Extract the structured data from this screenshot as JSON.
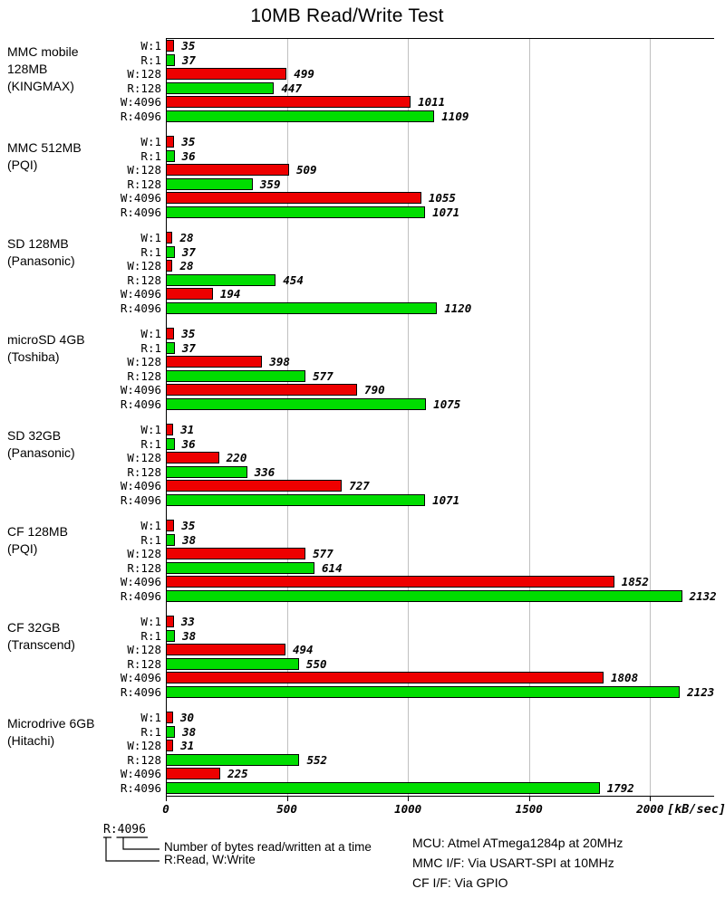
{
  "chart_data": {
    "type": "bar",
    "orientation": "horizontal",
    "title": "10MB Read/Write Test",
    "xlabel": "[kB/sec]",
    "x_ticks": [
      0,
      500,
      1000,
      1500,
      2000
    ],
    "xlim": [
      0,
      2260
    ],
    "grid": true,
    "legend_position": "none",
    "bar_labels": [
      "W:1",
      "R:1",
      "W:128",
      "R:128",
      "W:4096",
      "R:4096"
    ],
    "colors": {
      "write": "#ee0000",
      "read": "#00dd00",
      "grid": "#c0c0c0",
      "axis": "#000000"
    },
    "groups": [
      {
        "label_lines": [
          "MMC mobile",
          "128MB",
          "(KINGMAX)"
        ],
        "values": [
          35,
          37,
          499,
          447,
          1011,
          1109
        ]
      },
      {
        "label_lines": [
          "MMC 512MB",
          "(PQI)"
        ],
        "values": [
          35,
          36,
          509,
          359,
          1055,
          1071
        ]
      },
      {
        "label_lines": [
          "SD 128MB",
          "(Panasonic)"
        ],
        "values": [
          28,
          37,
          28,
          454,
          194,
          1120
        ]
      },
      {
        "label_lines": [
          "microSD 4GB",
          "(Toshiba)"
        ],
        "values": [
          35,
          37,
          398,
          577,
          790,
          1075
        ]
      },
      {
        "label_lines": [
          "SD 32GB",
          "(Panasonic)"
        ],
        "values": [
          31,
          36,
          220,
          336,
          727,
          1071
        ]
      },
      {
        "label_lines": [
          "CF 128MB",
          "(PQI)"
        ],
        "values": [
          35,
          38,
          577,
          614,
          1852,
          2132
        ]
      },
      {
        "label_lines": [
          "CF 32GB",
          "(Transcend)"
        ],
        "values": [
          33,
          38,
          494,
          550,
          1808,
          2123
        ]
      },
      {
        "label_lines": [
          "Microdrive 6GB",
          "(Hitachi)"
        ],
        "values": [
          30,
          38,
          31,
          552,
          225,
          1792
        ]
      }
    ]
  },
  "legend": {
    "key_label": "R:4096",
    "note_bytes": "Number of bytes read/written at a time",
    "note_rw": "R:Read, W:Write"
  },
  "footer": {
    "lines": [
      "MCU: Atmel ATmega1284p at 20MHz",
      "MMC I/F: Via USART-SPI at 10MHz",
      "CF I/F: Via GPIO"
    ]
  }
}
